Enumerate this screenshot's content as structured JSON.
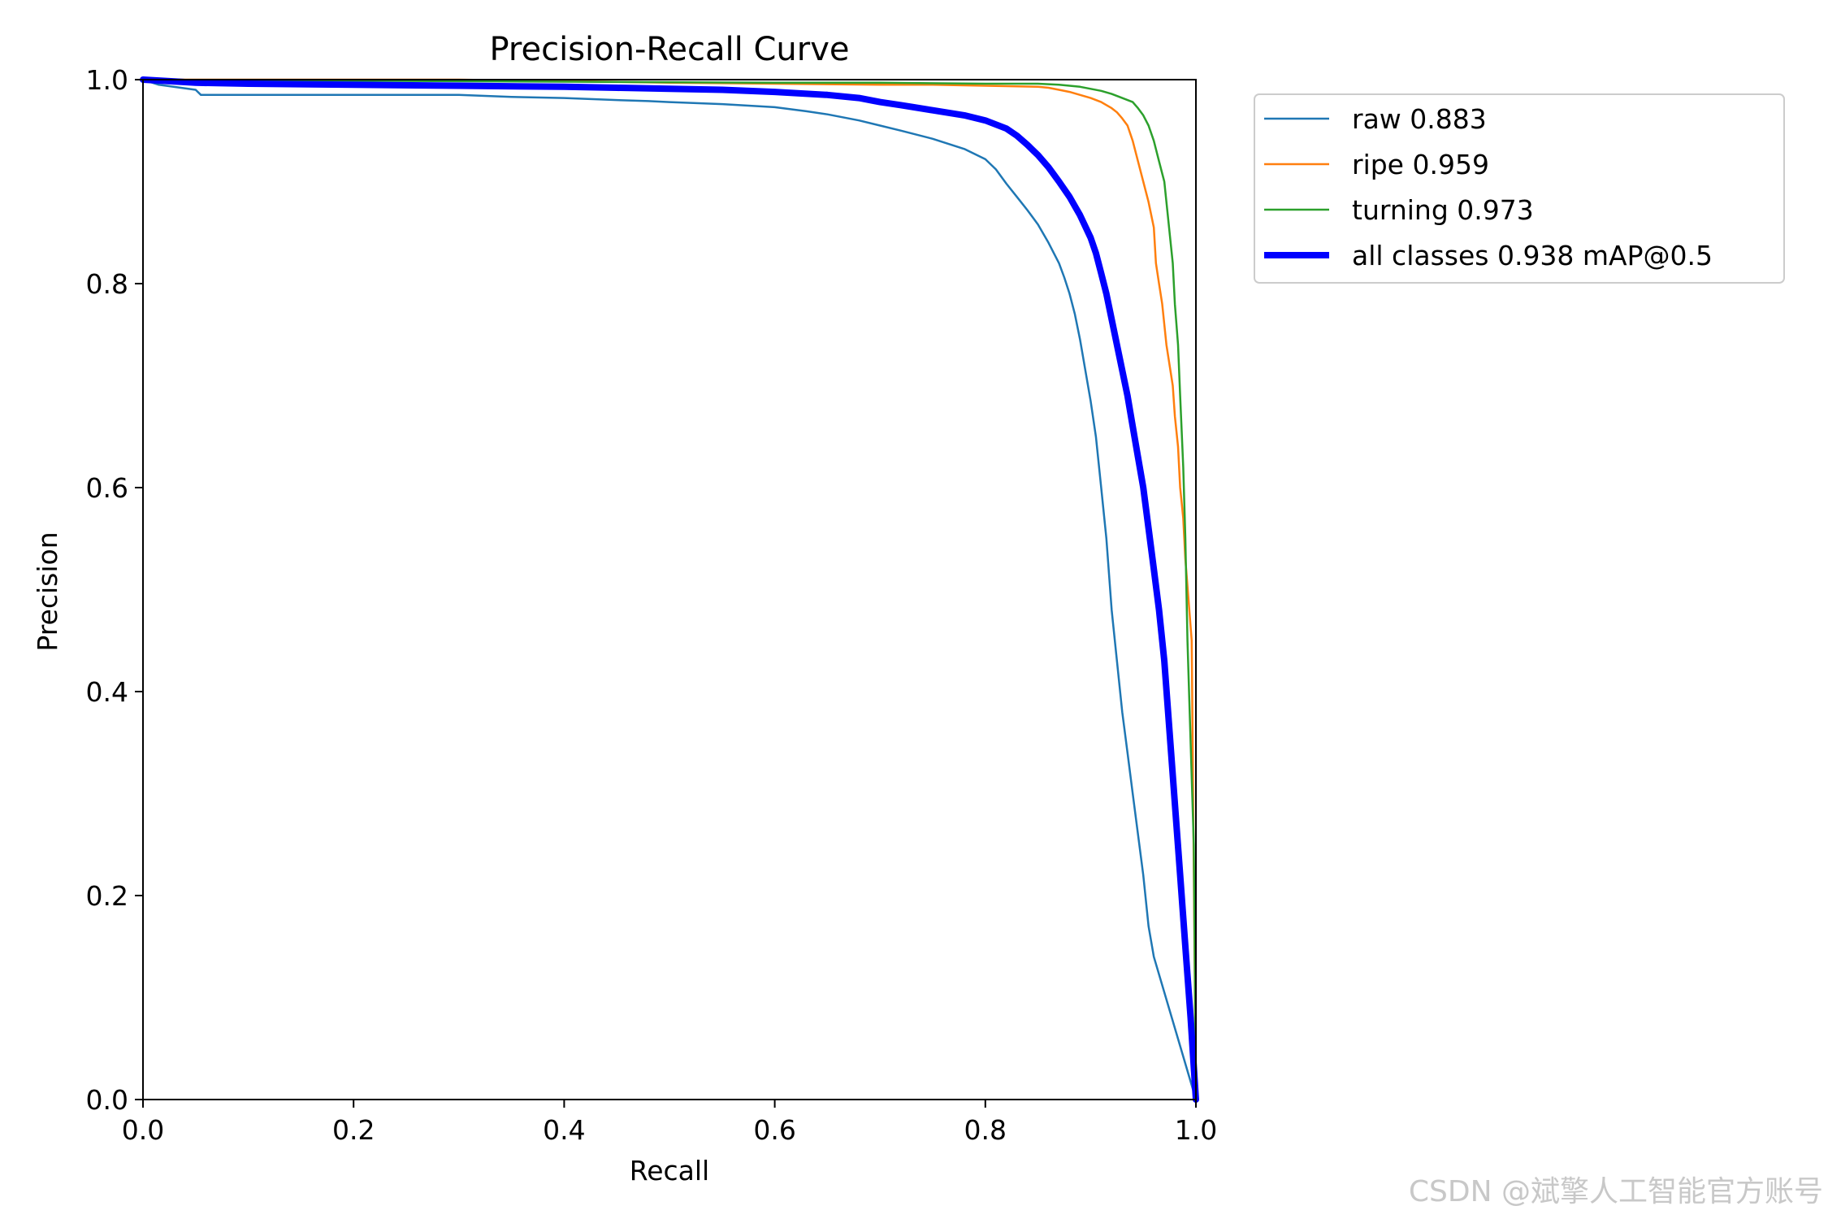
{
  "chart_data": {
    "type": "line",
    "title": "Precision-Recall Curve",
    "xlabel": "Recall",
    "ylabel": "Precision",
    "xlim": [
      0.0,
      1.0
    ],
    "ylim": [
      0.0,
      1.0
    ],
    "xticks": [
      "0.0",
      "0.2",
      "0.4",
      "0.6",
      "0.8",
      "1.0"
    ],
    "yticks": [
      "0.0",
      "0.2",
      "0.4",
      "0.6",
      "0.8",
      "1.0"
    ],
    "grid": false,
    "legend_position": "outside-top-right",
    "series": [
      {
        "name": "raw 0.883",
        "color": "#1f77b4",
        "width": "thin",
        "x": [
          0.0,
          0.015,
          0.05,
          0.055,
          0.1,
          0.2,
          0.3,
          0.35,
          0.4,
          0.45,
          0.48,
          0.5,
          0.55,
          0.6,
          0.63,
          0.65,
          0.68,
          0.7,
          0.72,
          0.75,
          0.78,
          0.8,
          0.81,
          0.82,
          0.83,
          0.84,
          0.85,
          0.86,
          0.87,
          0.875,
          0.88,
          0.885,
          0.89,
          0.895,
          0.9,
          0.905,
          0.91,
          0.915,
          0.92,
          0.925,
          0.93,
          0.935,
          0.94,
          0.945,
          0.95,
          0.955,
          0.96,
          1.0
        ],
        "y": [
          1.0,
          0.995,
          0.99,
          0.985,
          0.985,
          0.985,
          0.985,
          0.983,
          0.982,
          0.98,
          0.979,
          0.978,
          0.976,
          0.973,
          0.969,
          0.966,
          0.96,
          0.955,
          0.95,
          0.942,
          0.932,
          0.922,
          0.912,
          0.898,
          0.885,
          0.872,
          0.858,
          0.84,
          0.82,
          0.806,
          0.79,
          0.77,
          0.745,
          0.715,
          0.685,
          0.65,
          0.6,
          0.55,
          0.48,
          0.43,
          0.38,
          0.34,
          0.3,
          0.26,
          0.22,
          0.17,
          0.14,
          0.0
        ]
      },
      {
        "name": "ripe 0.959",
        "color": "#ff7f0e",
        "width": "thin",
        "x": [
          0.0,
          0.3,
          0.44,
          0.5,
          0.6,
          0.7,
          0.75,
          0.8,
          0.85,
          0.86,
          0.87,
          0.88,
          0.89,
          0.9,
          0.91,
          0.92,
          0.925,
          0.93,
          0.935,
          0.94,
          0.945,
          0.95,
          0.955,
          0.96,
          0.962,
          0.965,
          0.968,
          0.97,
          0.972,
          0.975,
          0.978,
          0.98,
          0.983,
          0.985,
          0.988,
          0.99,
          0.993,
          0.996,
          1.0
        ],
        "y": [
          1.0,
          1.0,
          0.998,
          0.997,
          0.996,
          0.995,
          0.995,
          0.994,
          0.993,
          0.992,
          0.99,
          0.988,
          0.985,
          0.982,
          0.978,
          0.972,
          0.968,
          0.962,
          0.955,
          0.94,
          0.92,
          0.9,
          0.88,
          0.855,
          0.82,
          0.8,
          0.78,
          0.76,
          0.74,
          0.72,
          0.7,
          0.67,
          0.64,
          0.6,
          0.57,
          0.53,
          0.49,
          0.45,
          0.0
        ]
      },
      {
        "name": "turning 0.973",
        "color": "#2ca02c",
        "width": "thin",
        "x": [
          0.0,
          0.2,
          0.4,
          0.6,
          0.7,
          0.8,
          0.85,
          0.87,
          0.89,
          0.9,
          0.91,
          0.92,
          0.93,
          0.94,
          0.945,
          0.95,
          0.955,
          0.96,
          0.965,
          0.97,
          0.972,
          0.975,
          0.978,
          0.98,
          0.983,
          0.985,
          0.988,
          0.99,
          0.992,
          0.995,
          0.998,
          1.0
        ],
        "y": [
          1.0,
          0.999,
          0.998,
          0.997,
          0.997,
          0.996,
          0.996,
          0.995,
          0.993,
          0.991,
          0.989,
          0.986,
          0.982,
          0.978,
          0.972,
          0.965,
          0.955,
          0.94,
          0.92,
          0.9,
          0.88,
          0.85,
          0.82,
          0.78,
          0.74,
          0.69,
          0.62,
          0.55,
          0.45,
          0.35,
          0.25,
          0.0
        ]
      },
      {
        "name": "all classes 0.938 mAP@0.5",
        "color": "#0000ff",
        "width": "thick",
        "x": [
          0.0,
          0.05,
          0.1,
          0.2,
          0.3,
          0.4,
          0.45,
          0.5,
          0.55,
          0.6,
          0.65,
          0.68,
          0.7,
          0.72,
          0.75,
          0.78,
          0.8,
          0.82,
          0.83,
          0.84,
          0.85,
          0.86,
          0.87,
          0.88,
          0.89,
          0.9,
          0.905,
          0.91,
          0.915,
          0.92,
          0.925,
          0.93,
          0.935,
          0.94,
          0.945,
          0.95,
          0.955,
          0.96,
          0.965,
          0.97,
          0.975,
          0.98,
          0.985,
          0.99,
          0.995,
          1.0
        ],
        "y": [
          1.0,
          0.997,
          0.996,
          0.995,
          0.994,
          0.993,
          0.992,
          0.991,
          0.99,
          0.988,
          0.985,
          0.982,
          0.978,
          0.975,
          0.97,
          0.965,
          0.96,
          0.952,
          0.945,
          0.936,
          0.926,
          0.914,
          0.9,
          0.885,
          0.867,
          0.845,
          0.83,
          0.81,
          0.79,
          0.765,
          0.74,
          0.715,
          0.69,
          0.66,
          0.63,
          0.6,
          0.56,
          0.52,
          0.48,
          0.43,
          0.36,
          0.29,
          0.22,
          0.15,
          0.08,
          0.0
        ]
      }
    ]
  },
  "watermark": "CSDN @斌擎人工智能官方账号"
}
